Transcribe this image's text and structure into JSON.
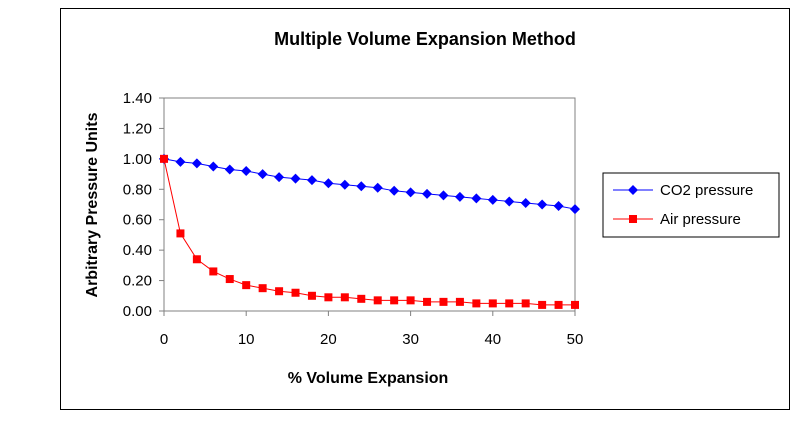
{
  "chart_data": {
    "type": "line",
    "title": "Multiple Volume Expansion Method",
    "xlabel": "% Volume Expansion",
    "ylabel": "Arbitrary Pressure Units",
    "xlim": [
      0,
      50
    ],
    "ylim": [
      0,
      1.4
    ],
    "x_ticks": [
      "0",
      "10",
      "20",
      "30",
      "40",
      "50"
    ],
    "y_ticks": [
      "0.00",
      "0.20",
      "0.40",
      "0.60",
      "0.80",
      "1.00",
      "1.20",
      "1.40"
    ],
    "grid": false,
    "legend_position": "right",
    "x": [
      0,
      2,
      4,
      6,
      8,
      10,
      12,
      14,
      16,
      18,
      20,
      22,
      24,
      26,
      28,
      30,
      32,
      34,
      36,
      38,
      40,
      42,
      44,
      46,
      48,
      50
    ],
    "series": [
      {
        "name": "CO2 pressure",
        "color": "#0000ff",
        "marker": "diamond",
        "values": [
          1.0,
          0.98,
          0.97,
          0.95,
          0.93,
          0.92,
          0.9,
          0.88,
          0.87,
          0.86,
          0.84,
          0.83,
          0.82,
          0.81,
          0.79,
          0.78,
          0.77,
          0.76,
          0.75,
          0.74,
          0.73,
          0.72,
          0.71,
          0.7,
          0.69,
          0.67
        ]
      },
      {
        "name": "Air pressure",
        "color": "#ff0000",
        "marker": "square",
        "values": [
          1.0,
          0.51,
          0.34,
          0.26,
          0.21,
          0.17,
          0.15,
          0.13,
          0.12,
          0.1,
          0.09,
          0.09,
          0.08,
          0.07,
          0.07,
          0.07,
          0.06,
          0.06,
          0.06,
          0.05,
          0.05,
          0.05,
          0.05,
          0.04,
          0.04,
          0.04
        ]
      }
    ]
  }
}
